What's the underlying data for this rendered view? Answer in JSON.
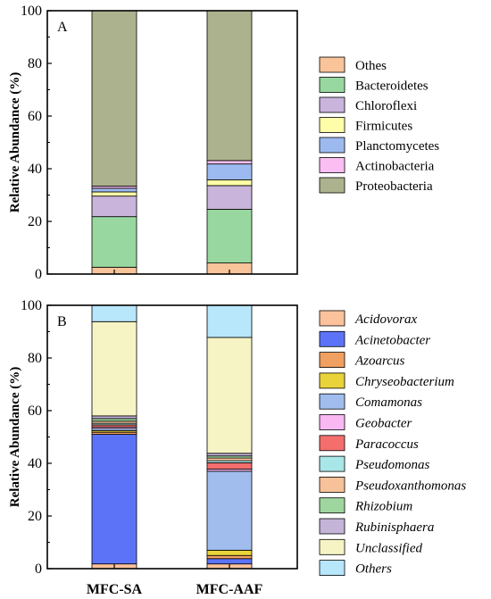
{
  "chart_data": [
    {
      "type": "stacked-bar",
      "panel_label": "A",
      "ylabel": "Relative Abundance (%)",
      "ylim": [
        0,
        100
      ],
      "yticks": [
        "0",
        "20",
        "40",
        "60",
        "80",
        "100"
      ],
      "categories": [
        "MFC-SA",
        "MFC-AAF"
      ],
      "legend_position": "right",
      "legend_italic": false,
      "series": [
        {
          "name": "Othes",
          "color": "#F9C49A",
          "values": [
            2.6,
            4.2
          ]
        },
        {
          "name": "Bacteroidetes",
          "color": "#98D8A0",
          "values": [
            19.2,
            20.4
          ]
        },
        {
          "name": "Chloroflexi",
          "color": "#C9B4DB",
          "values": [
            7.8,
            9.0
          ]
        },
        {
          "name": "Firmicutes",
          "color": "#FEFEA8",
          "values": [
            1.6,
            2.2
          ]
        },
        {
          "name": "Planctomycetes",
          "color": "#9DBAF0",
          "values": [
            1.4,
            6.0
          ]
        },
        {
          "name": "Actinobacteria",
          "color": "#FBBEF2",
          "values": [
            0.8,
            1.3
          ]
        },
        {
          "name": "Proteobacteria",
          "color": "#ACB28E",
          "values": [
            66.6,
            56.9
          ]
        }
      ]
    },
    {
      "type": "stacked-bar",
      "panel_label": "B",
      "ylabel": "Relative Abundance (%)",
      "ylim": [
        0,
        100
      ],
      "yticks": [
        "0",
        "20",
        "40",
        "60",
        "80",
        "100"
      ],
      "categories": [
        "MFC-SA",
        "MFC-AAF"
      ],
      "legend_position": "right",
      "legend_italic": true,
      "series": [
        {
          "name": "Acidovorax",
          "color": "#FBC29C",
          "values": [
            1.8,
            1.8
          ]
        },
        {
          "name": "Acinetobacter",
          "color": "#5C73F7",
          "values": [
            49.2,
            2.0
          ]
        },
        {
          "name": "Azoarcus",
          "color": "#F0A060",
          "values": [
            0.8,
            1.2
          ]
        },
        {
          "name": "Chryseobacterium",
          "color": "#E8D43A",
          "values": [
            0.6,
            2.0
          ]
        },
        {
          "name": "Comamonas",
          "color": "#A0BDEE",
          "values": [
            0.8,
            30.0
          ]
        },
        {
          "name": "Geobacter",
          "color": "#F9B8F2",
          "values": [
            0.6,
            0.8
          ]
        },
        {
          "name": "Paracoccus",
          "color": "#F46E6E",
          "values": [
            0.8,
            2.4
          ]
        },
        {
          "name": "Pseudomonas",
          "color": "#A9E6E8",
          "values": [
            0.6,
            0.8
          ]
        },
        {
          "name": "Pseudoxanthomonas",
          "color": "#F7C19A",
          "values": [
            0.8,
            1.0
          ]
        },
        {
          "name": "Rhizobium",
          "color": "#9FD6A0",
          "values": [
            1.0,
            0.8
          ]
        },
        {
          "name": "Rubinisphaera",
          "color": "#C4B4D8",
          "values": [
            1.0,
            1.0
          ]
        },
        {
          "name": "Unclassified",
          "color": "#F6F4C4",
          "values": [
            35.8,
            44.0
          ]
        },
        {
          "name": "Others",
          "color": "#B8E6FA",
          "values": [
            6.2,
            12.2
          ]
        }
      ]
    }
  ]
}
